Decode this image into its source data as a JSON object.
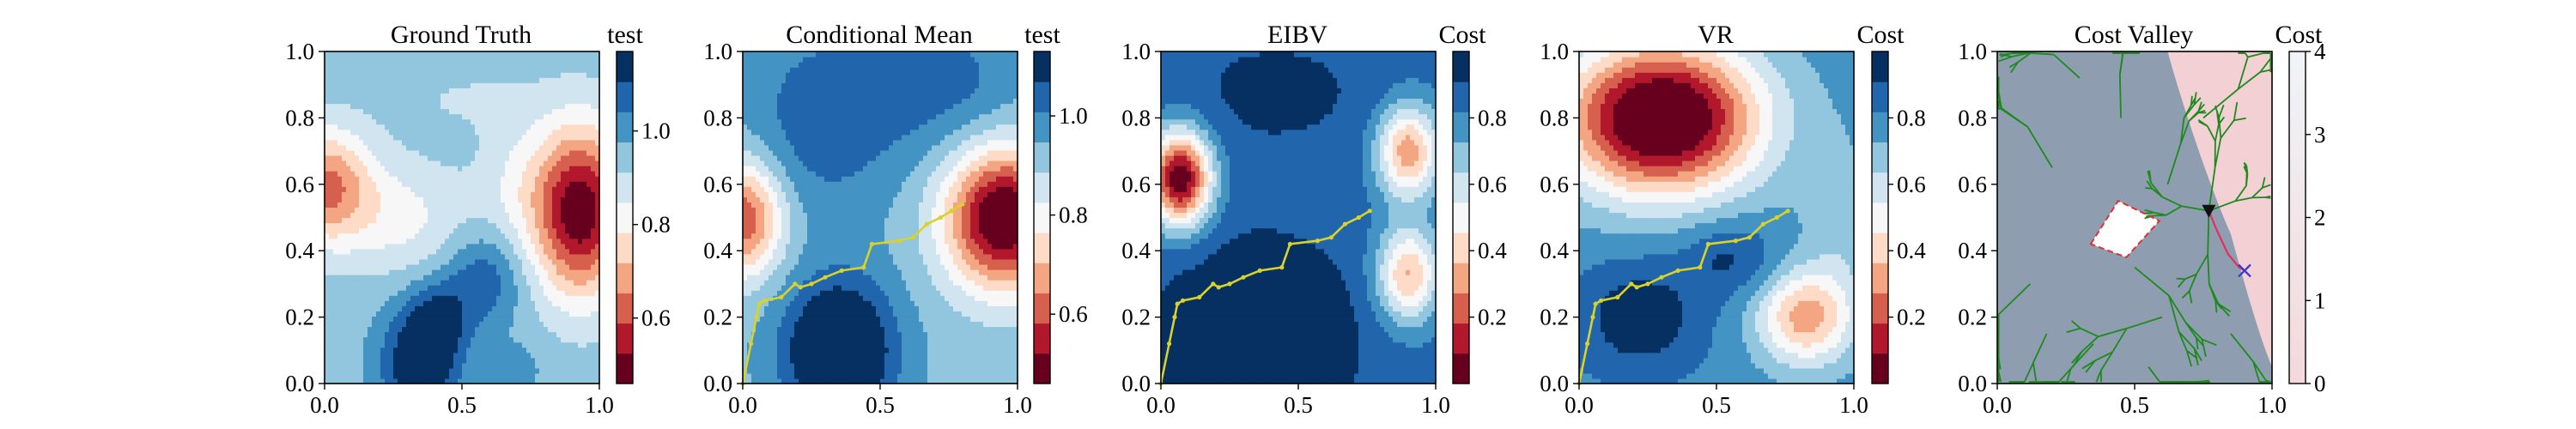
{
  "figure": {
    "background": "#ffffff"
  },
  "chart_data": [
    {
      "type": "heatmap",
      "title": "Ground Truth",
      "xlim": [
        0.0,
        1.0
      ],
      "ylim": [
        0.0,
        1.0
      ],
      "xticks": [
        "0.0",
        "0.5",
        "1.0"
      ],
      "yticks": [
        "0.0",
        "0.2",
        "0.4",
        "0.6",
        "0.8",
        "1.0"
      ],
      "colorbar": {
        "title": "test",
        "range": [
          0.46,
          1.17
        ],
        "ticks": [
          0.6,
          0.8,
          1.0
        ],
        "tick_labels": [
          "0.6",
          "0.8",
          "1.0"
        ],
        "colors": [
          "#67001f",
          "#b2182b",
          "#d6604d",
          "#f4a582",
          "#fddbc7",
          "#f7f7f7",
          "#d1e5f0",
          "#92c5de",
          "#4393c3",
          "#2166ac",
          "#053061"
        ]
      },
      "field": {
        "base": 0.95,
        "bumps": [
          {
            "x": 0.93,
            "y": 0.52,
            "sx": 0.12,
            "sy": 0.18,
            "a": -0.48
          },
          {
            "x": 0.0,
            "y": 0.6,
            "sx": 0.12,
            "sy": 0.12,
            "a": -0.3
          },
          {
            "x": 0.35,
            "y": 0.06,
            "sx": 0.1,
            "sy": 0.12,
            "a": 0.25
          },
          {
            "x": 0.58,
            "y": 0.32,
            "sx": 0.1,
            "sy": 0.1,
            "a": 0.14
          },
          {
            "x": 0.7,
            "y": 0.6,
            "sx": 0.1,
            "sy": 0.15,
            "a": -0.08
          },
          {
            "x": 0.28,
            "y": 0.5,
            "sx": 0.18,
            "sy": 0.12,
            "a": -0.12
          },
          {
            "x": 0.42,
            "y": 0.2,
            "sx": 0.08,
            "sy": 0.08,
            "a": 0.12
          },
          {
            "x": 0.7,
            "y": 0.05,
            "sx": 0.08,
            "sy": 0.06,
            "a": 0.05
          },
          {
            "x": 0.5,
            "y": 0.86,
            "sx": 0.2,
            "sy": 0.08,
            "a": -0.04
          }
        ]
      },
      "path": []
    },
    {
      "type": "heatmap",
      "title": "Conditional Mean",
      "xlim": [
        0.0,
        1.0
      ],
      "ylim": [
        0.0,
        1.0
      ],
      "xticks": [
        "0.0",
        "0.5",
        "1.0"
      ],
      "yticks": [
        "0.0",
        "0.2",
        "0.4",
        "0.6",
        "0.8",
        "1.0"
      ],
      "colorbar": {
        "title": "test",
        "range": [
          0.46,
          1.13
        ],
        "ticks": [
          0.6,
          0.8,
          1.0
        ],
        "tick_labels": [
          "0.6",
          "0.8",
          "1.0"
        ],
        "colors": [
          "#67001f",
          "#b2182b",
          "#d6604d",
          "#f4a582",
          "#fddbc7",
          "#f7f7f7",
          "#d1e5f0",
          "#92c5de",
          "#4393c3",
          "#2166ac",
          "#053061"
        ]
      },
      "field": {
        "base": 0.93,
        "bumps": [
          {
            "x": 0.95,
            "y": 0.5,
            "sx": 0.15,
            "sy": 0.15,
            "a": -0.5
          },
          {
            "x": 0.0,
            "y": 0.5,
            "sx": 0.1,
            "sy": 0.12,
            "a": -0.35
          },
          {
            "x": 0.35,
            "y": 0.1,
            "sx": 0.14,
            "sy": 0.15,
            "a": 0.3
          },
          {
            "x": 0.3,
            "y": 0.8,
            "sx": 0.2,
            "sy": 0.2,
            "a": 0.12
          },
          {
            "x": 0.75,
            "y": 0.9,
            "sx": 0.2,
            "sy": 0.15,
            "a": 0.1
          }
        ]
      },
      "path": [
        [
          0.0,
          0.0
        ],
        [
          0.03,
          0.12
        ],
        [
          0.05,
          0.2
        ],
        [
          0.06,
          0.24
        ],
        [
          0.08,
          0.25
        ],
        [
          0.14,
          0.26
        ],
        [
          0.19,
          0.3
        ],
        [
          0.21,
          0.29
        ],
        [
          0.25,
          0.3
        ],
        [
          0.3,
          0.32
        ],
        [
          0.36,
          0.34
        ],
        [
          0.44,
          0.35
        ],
        [
          0.47,
          0.42
        ],
        [
          0.57,
          0.43
        ],
        [
          0.62,
          0.44
        ],
        [
          0.67,
          0.48
        ],
        [
          0.72,
          0.5
        ],
        [
          0.76,
          0.52
        ],
        [
          0.8,
          0.54
        ]
      ]
    },
    {
      "type": "heatmap",
      "title": "EIBV",
      "xlim": [
        0.0,
        1.0
      ],
      "ylim": [
        0.0,
        1.0
      ],
      "xticks": [
        "0.0",
        "0.5",
        "1.0"
      ],
      "yticks": [
        "0.0",
        "0.2",
        "0.4",
        "0.6",
        "0.8",
        "1.0"
      ],
      "colorbar": {
        "title": "Cost",
        "range": [
          0.0,
          1.0
        ],
        "ticks": [
          0.2,
          0.4,
          0.6,
          0.8
        ],
        "tick_labels": [
          "0.2",
          "0.4",
          "0.6",
          "0.8"
        ],
        "colors": [
          "#67001f",
          "#b2182b",
          "#d6604d",
          "#f4a582",
          "#fddbc7",
          "#f7f7f7",
          "#d1e5f0",
          "#92c5de",
          "#4393c3",
          "#2166ac",
          "#053061"
        ]
      },
      "field": {
        "base": 0.85,
        "bumps": [
          {
            "x": 0.07,
            "y": 0.62,
            "sx": 0.08,
            "sy": 0.1,
            "a": -0.85
          },
          {
            "x": 0.9,
            "y": 0.7,
            "sx": 0.08,
            "sy": 0.1,
            "a": -0.55
          },
          {
            "x": 0.9,
            "y": 0.33,
            "sx": 0.08,
            "sy": 0.1,
            "a": -0.5
          },
          {
            "x": 0.42,
            "y": 0.88,
            "sx": 0.3,
            "sy": 0.15,
            "a": 0.08
          },
          {
            "x": 0.35,
            "y": 0.15,
            "sx": 0.25,
            "sy": 0.2,
            "a": 0.2
          }
        ]
      },
      "path": [
        [
          0.0,
          0.0
        ],
        [
          0.03,
          0.12
        ],
        [
          0.05,
          0.2
        ],
        [
          0.06,
          0.24
        ],
        [
          0.08,
          0.25
        ],
        [
          0.14,
          0.26
        ],
        [
          0.19,
          0.3
        ],
        [
          0.21,
          0.29
        ],
        [
          0.25,
          0.3
        ],
        [
          0.3,
          0.32
        ],
        [
          0.36,
          0.34
        ],
        [
          0.44,
          0.35
        ],
        [
          0.47,
          0.42
        ],
        [
          0.57,
          0.43
        ],
        [
          0.62,
          0.44
        ],
        [
          0.67,
          0.48
        ],
        [
          0.72,
          0.5
        ],
        [
          0.76,
          0.52
        ]
      ]
    },
    {
      "type": "heatmap",
      "title": "VR",
      "xlim": [
        0.0,
        1.0
      ],
      "ylim": [
        0.0,
        1.0
      ],
      "xticks": [
        "0.0",
        "0.5",
        "1.0"
      ],
      "yticks": [
        "0.0",
        "0.2",
        "0.4",
        "0.6",
        "0.8",
        "1.0"
      ],
      "colorbar": {
        "title": "Cost",
        "range": [
          0.0,
          1.0
        ],
        "ticks": [
          0.2,
          0.4,
          0.6,
          0.8
        ],
        "tick_labels": [
          "0.2",
          "0.4",
          "0.6",
          "0.8"
        ],
        "colors": [
          "#67001f",
          "#b2182b",
          "#d6604d",
          "#f4a582",
          "#fddbc7",
          "#f7f7f7",
          "#d1e5f0",
          "#92c5de",
          "#4393c3",
          "#2166ac",
          "#053061"
        ]
      },
      "field": {
        "base": 0.78,
        "bumps": [
          {
            "x": 0.3,
            "y": 0.8,
            "sx": 0.25,
            "sy": 0.16,
            "a": -0.9
          },
          {
            "x": 0.82,
            "y": 0.2,
            "sx": 0.12,
            "sy": 0.1,
            "a": -0.45
          },
          {
            "x": 0.22,
            "y": 0.2,
            "sx": 0.16,
            "sy": 0.12,
            "a": 0.2
          },
          {
            "x": 0.55,
            "y": 0.38,
            "sx": 0.12,
            "sy": 0.08,
            "a": 0.15
          },
          {
            "x": 0.95,
            "y": 0.45,
            "sx": 0.1,
            "sy": 0.2,
            "a": -0.1
          }
        ]
      },
      "path": [
        [
          0.0,
          0.0
        ],
        [
          0.03,
          0.12
        ],
        [
          0.05,
          0.2
        ],
        [
          0.06,
          0.24
        ],
        [
          0.08,
          0.25
        ],
        [
          0.14,
          0.26
        ],
        [
          0.19,
          0.3
        ],
        [
          0.21,
          0.29
        ],
        [
          0.25,
          0.3
        ],
        [
          0.3,
          0.32
        ],
        [
          0.36,
          0.34
        ],
        [
          0.44,
          0.35
        ],
        [
          0.47,
          0.42
        ],
        [
          0.57,
          0.43
        ],
        [
          0.62,
          0.44
        ],
        [
          0.67,
          0.48
        ],
        [
          0.72,
          0.5
        ],
        [
          0.76,
          0.52
        ]
      ]
    },
    {
      "type": "heatmap",
      "title": "Cost Valley",
      "xlim": [
        0.0,
        1.0
      ],
      "ylim": [
        0.0,
        1.0
      ],
      "xticks": [
        "0.0",
        "0.5",
        "1.0"
      ],
      "yticks": [
        "0.0",
        "0.2",
        "0.4",
        "0.6",
        "0.8",
        "1.0"
      ],
      "colorbar": {
        "title": "Cost",
        "range": [
          0.0,
          4.0
        ],
        "ticks": [
          0,
          1,
          2,
          3,
          4
        ],
        "tick_labels": [
          "0",
          "1",
          "2",
          "3",
          "4"
        ],
        "colors": [
          "#f3d9db",
          "#f0f4f8"
        ]
      },
      "valley_colors": {
        "background": "#8e9eb0",
        "high_cost": "#f2d0d4",
        "obstacle": "#ffffff",
        "tree": "#1e8a1e",
        "obstacle_outline": "#e03030",
        "marker": "#111111",
        "cross": "#3b3bd6",
        "path": "#e03060"
      },
      "obstacle_polygon": [
        [
          0.34,
          0.42
        ],
        [
          0.44,
          0.55
        ],
        [
          0.59,
          0.49
        ],
        [
          0.47,
          0.38
        ]
      ],
      "agent_marker": [
        0.77,
        0.52
      ],
      "target_cross": [
        0.9,
        0.34
      ],
      "highlight_path": [
        [
          0.77,
          0.52
        ],
        [
          0.8,
          0.46
        ],
        [
          0.84,
          0.39
        ],
        [
          0.88,
          0.35
        ],
        [
          0.9,
          0.34
        ]
      ]
    }
  ]
}
